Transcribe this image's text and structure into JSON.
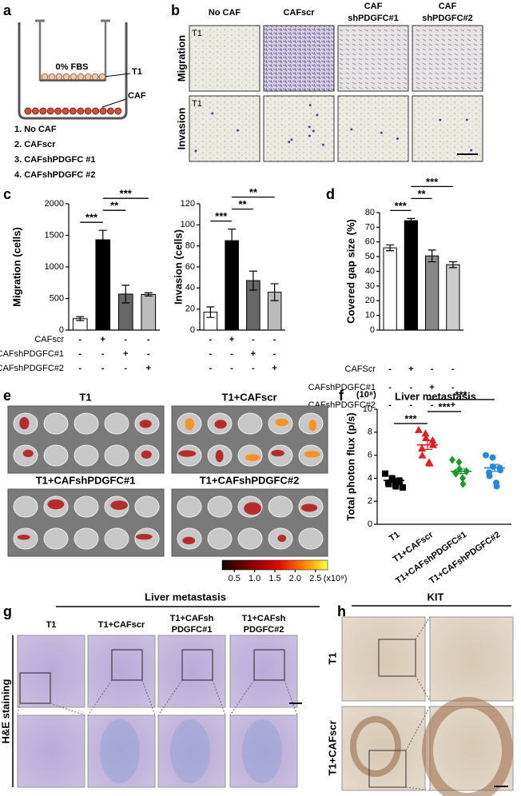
{
  "panel_labels": [
    "a",
    "b",
    "c",
    "d",
    "e",
    "f",
    "g",
    "h"
  ],
  "panel_a": {
    "medium": "0% FBS",
    "t1": "T1",
    "caf": "CAF",
    "conditions": [
      "1. No CAF",
      "2. CAFscr",
      "3. CAFshPDGFC #1",
      "4. CAFshPDGFC #2"
    ]
  },
  "panel_b": {
    "columns": [
      [
        "No CAF"
      ],
      [
        "CAFscr"
      ],
      [
        "CAF",
        "shPDGFC#1"
      ],
      [
        "CAF",
        "shPDGFC#2"
      ]
    ],
    "rows": [
      "Migration",
      "Invasion"
    ],
    "corner_label": "T1"
  },
  "chart_data": [
    {
      "type": "bar",
      "y_label": "Migration (cells)",
      "values": [
        180,
        1430,
        570,
        565
      ],
      "errors": [
        30,
        150,
        140,
        25
      ],
      "colors": [
        "#ffffff",
        "#000000",
        "#666666",
        "#bbbbbb"
      ],
      "ylim": [
        0,
        2000
      ],
      "yticks": [
        0,
        500,
        1000,
        1500,
        2000
      ],
      "treatments": [
        {
          "name": "CAFscr",
          "signs": [
            "-",
            "+",
            "-",
            "-"
          ]
        },
        {
          "name": "CAFshPDGFC#1",
          "signs": [
            "-",
            "-",
            "+",
            "-"
          ]
        },
        {
          "name": "CAFshPDGFC#2",
          "signs": [
            "-",
            "-",
            "-",
            "+"
          ]
        }
      ],
      "comparisons": [
        {
          "bars": [
            0,
            1
          ],
          "label": "***"
        },
        {
          "bars": [
            1,
            2
          ],
          "label": "**"
        },
        {
          "bars": [
            1,
            3
          ],
          "label": "***"
        }
      ]
    },
    {
      "type": "bar",
      "y_label": "Invasion (cells)",
      "values": [
        17,
        85,
        47,
        36
      ],
      "errors": [
        5,
        11,
        9,
        8
      ],
      "colors": [
        "#ffffff",
        "#000000",
        "#666666",
        "#bbbbbb"
      ],
      "ylim": [
        0,
        120
      ],
      "yticks": [
        0,
        20,
        40,
        60,
        80,
        100,
        120
      ],
      "treatments": [
        {
          "signs": [
            "-",
            "+",
            "-",
            "-"
          ]
        },
        {
          "signs": [
            "-",
            "-",
            "+",
            "-"
          ]
        },
        {
          "signs": [
            "-",
            "-",
            "-",
            "+"
          ]
        }
      ],
      "comparisons": [
        {
          "bars": [
            0,
            1
          ],
          "label": "***"
        },
        {
          "bars": [
            1,
            2
          ],
          "label": "**"
        },
        {
          "bars": [
            1,
            3
          ],
          "label": "**"
        }
      ]
    },
    {
      "type": "bar",
      "y_label": "Covered gap size (%)",
      "values": [
        56,
        74.5,
        50.5,
        44.5
      ],
      "errors": [
        2,
        1.5,
        4,
        2
      ],
      "colors": [
        "#ffffff",
        "#000000",
        "#888888",
        "#cccccc"
      ],
      "ylim": [
        0,
        80
      ],
      "yticks": [
        0,
        10,
        20,
        30,
        40,
        50,
        60,
        70,
        80
      ],
      "treatments": [
        {
          "name": "CAFScr",
          "signs": [
            "-",
            "+",
            "-",
            "-"
          ]
        },
        {
          "name": "CAFshPDGFC#1",
          "signs": [
            "-",
            "-",
            "+",
            "-"
          ]
        },
        {
          "name": "CAFshPDGFC#2",
          "signs": [
            "-",
            "-",
            "-",
            "+"
          ]
        }
      ],
      "comparisons": [
        {
          "bars": [
            0,
            1
          ],
          "label": "***"
        },
        {
          "bars": [
            1,
            2
          ],
          "label": "**"
        },
        {
          "bars": [
            1,
            3
          ],
          "label": "***"
        }
      ]
    },
    {
      "type": "scatter",
      "title": "Liver metastasis",
      "y_label": "Total photon flux (p/s)",
      "y_unit": "(10⁸)",
      "categories": [
        "T1",
        "T1+CAFscr",
        "T1+CAFshPDGFC#1",
        "T1+CAFshPDGFC#2"
      ],
      "ylim": [
        0,
        10
      ],
      "yticks": [
        0,
        2,
        4,
        6,
        8,
        10
      ],
      "groups": [
        {
          "color": "#000000",
          "marker": "square",
          "values": [
            4.4,
            4.0,
            3.9,
            3.8,
            3.7,
            3.6,
            3.5,
            3.4,
            3.3,
            3.2
          ],
          "mean": 3.8,
          "sem": 0.12
        },
        {
          "color": "#e02020",
          "marker": "triangle",
          "values": [
            8.2,
            7.9,
            7.5,
            7.3,
            6.9,
            6.6,
            6.0,
            5.4,
            5.3
          ],
          "mean": 6.9,
          "sem": 0.4
        },
        {
          "color": "#1a9a2a",
          "marker": "diamond",
          "values": [
            5.6,
            5.4,
            4.8,
            4.6,
            4.6,
            4.5,
            4.4,
            4.0,
            3.5
          ],
          "mean": 4.6,
          "sem": 0.2
        },
        {
          "color": "#2a86d8",
          "marker": "circle",
          "values": [
            6.0,
            5.8,
            5.0,
            4.9,
            4.7,
            4.5,
            4.2,
            3.6,
            3.3
          ],
          "mean": 4.9,
          "sem": 0.3
        }
      ],
      "comparisons": [
        {
          "bars": [
            0,
            1
          ],
          "label": "***"
        },
        {
          "bars": [
            1,
            2
          ],
          "label": "***"
        },
        {
          "bars": [
            1,
            3
          ],
          "label": "***"
        }
      ]
    }
  ],
  "panel_e": {
    "groups": [
      {
        "name": "T1",
        "color": "#000000"
      },
      {
        "name": "T1+CAFscr",
        "color": "#cc1010"
      },
      {
        "name": "T1+CAFshPDGFC#1",
        "color": "#4a8a20"
      },
      {
        "name": "T1+CAFshPDGFC#2",
        "color": "#2a7ac8"
      }
    ],
    "colorbar": {
      "lim": [
        0.2,
        2.8
      ],
      "ticks": [
        0.5,
        {
          "value": 1,
          "label": "1.0"
        },
        1.5,
        {
          "value": 2,
          "label": "2.0"
        },
        2.5
      ],
      "unit": "(x10⁸)"
    }
  },
  "panel_g": {
    "title": "Liver metastasis",
    "columns": [
      [
        "T1"
      ],
      [
        "T1+CAFscr"
      ],
      [
        "T1+CAFsh",
        "PDGFC#1"
      ],
      [
        "T1+CAFsh",
        "PDGFC#2"
      ]
    ],
    "row_label": "H&E staining"
  },
  "panel_h": {
    "title": "KIT",
    "rows": [
      "T1",
      "T1+CAFscr"
    ]
  }
}
